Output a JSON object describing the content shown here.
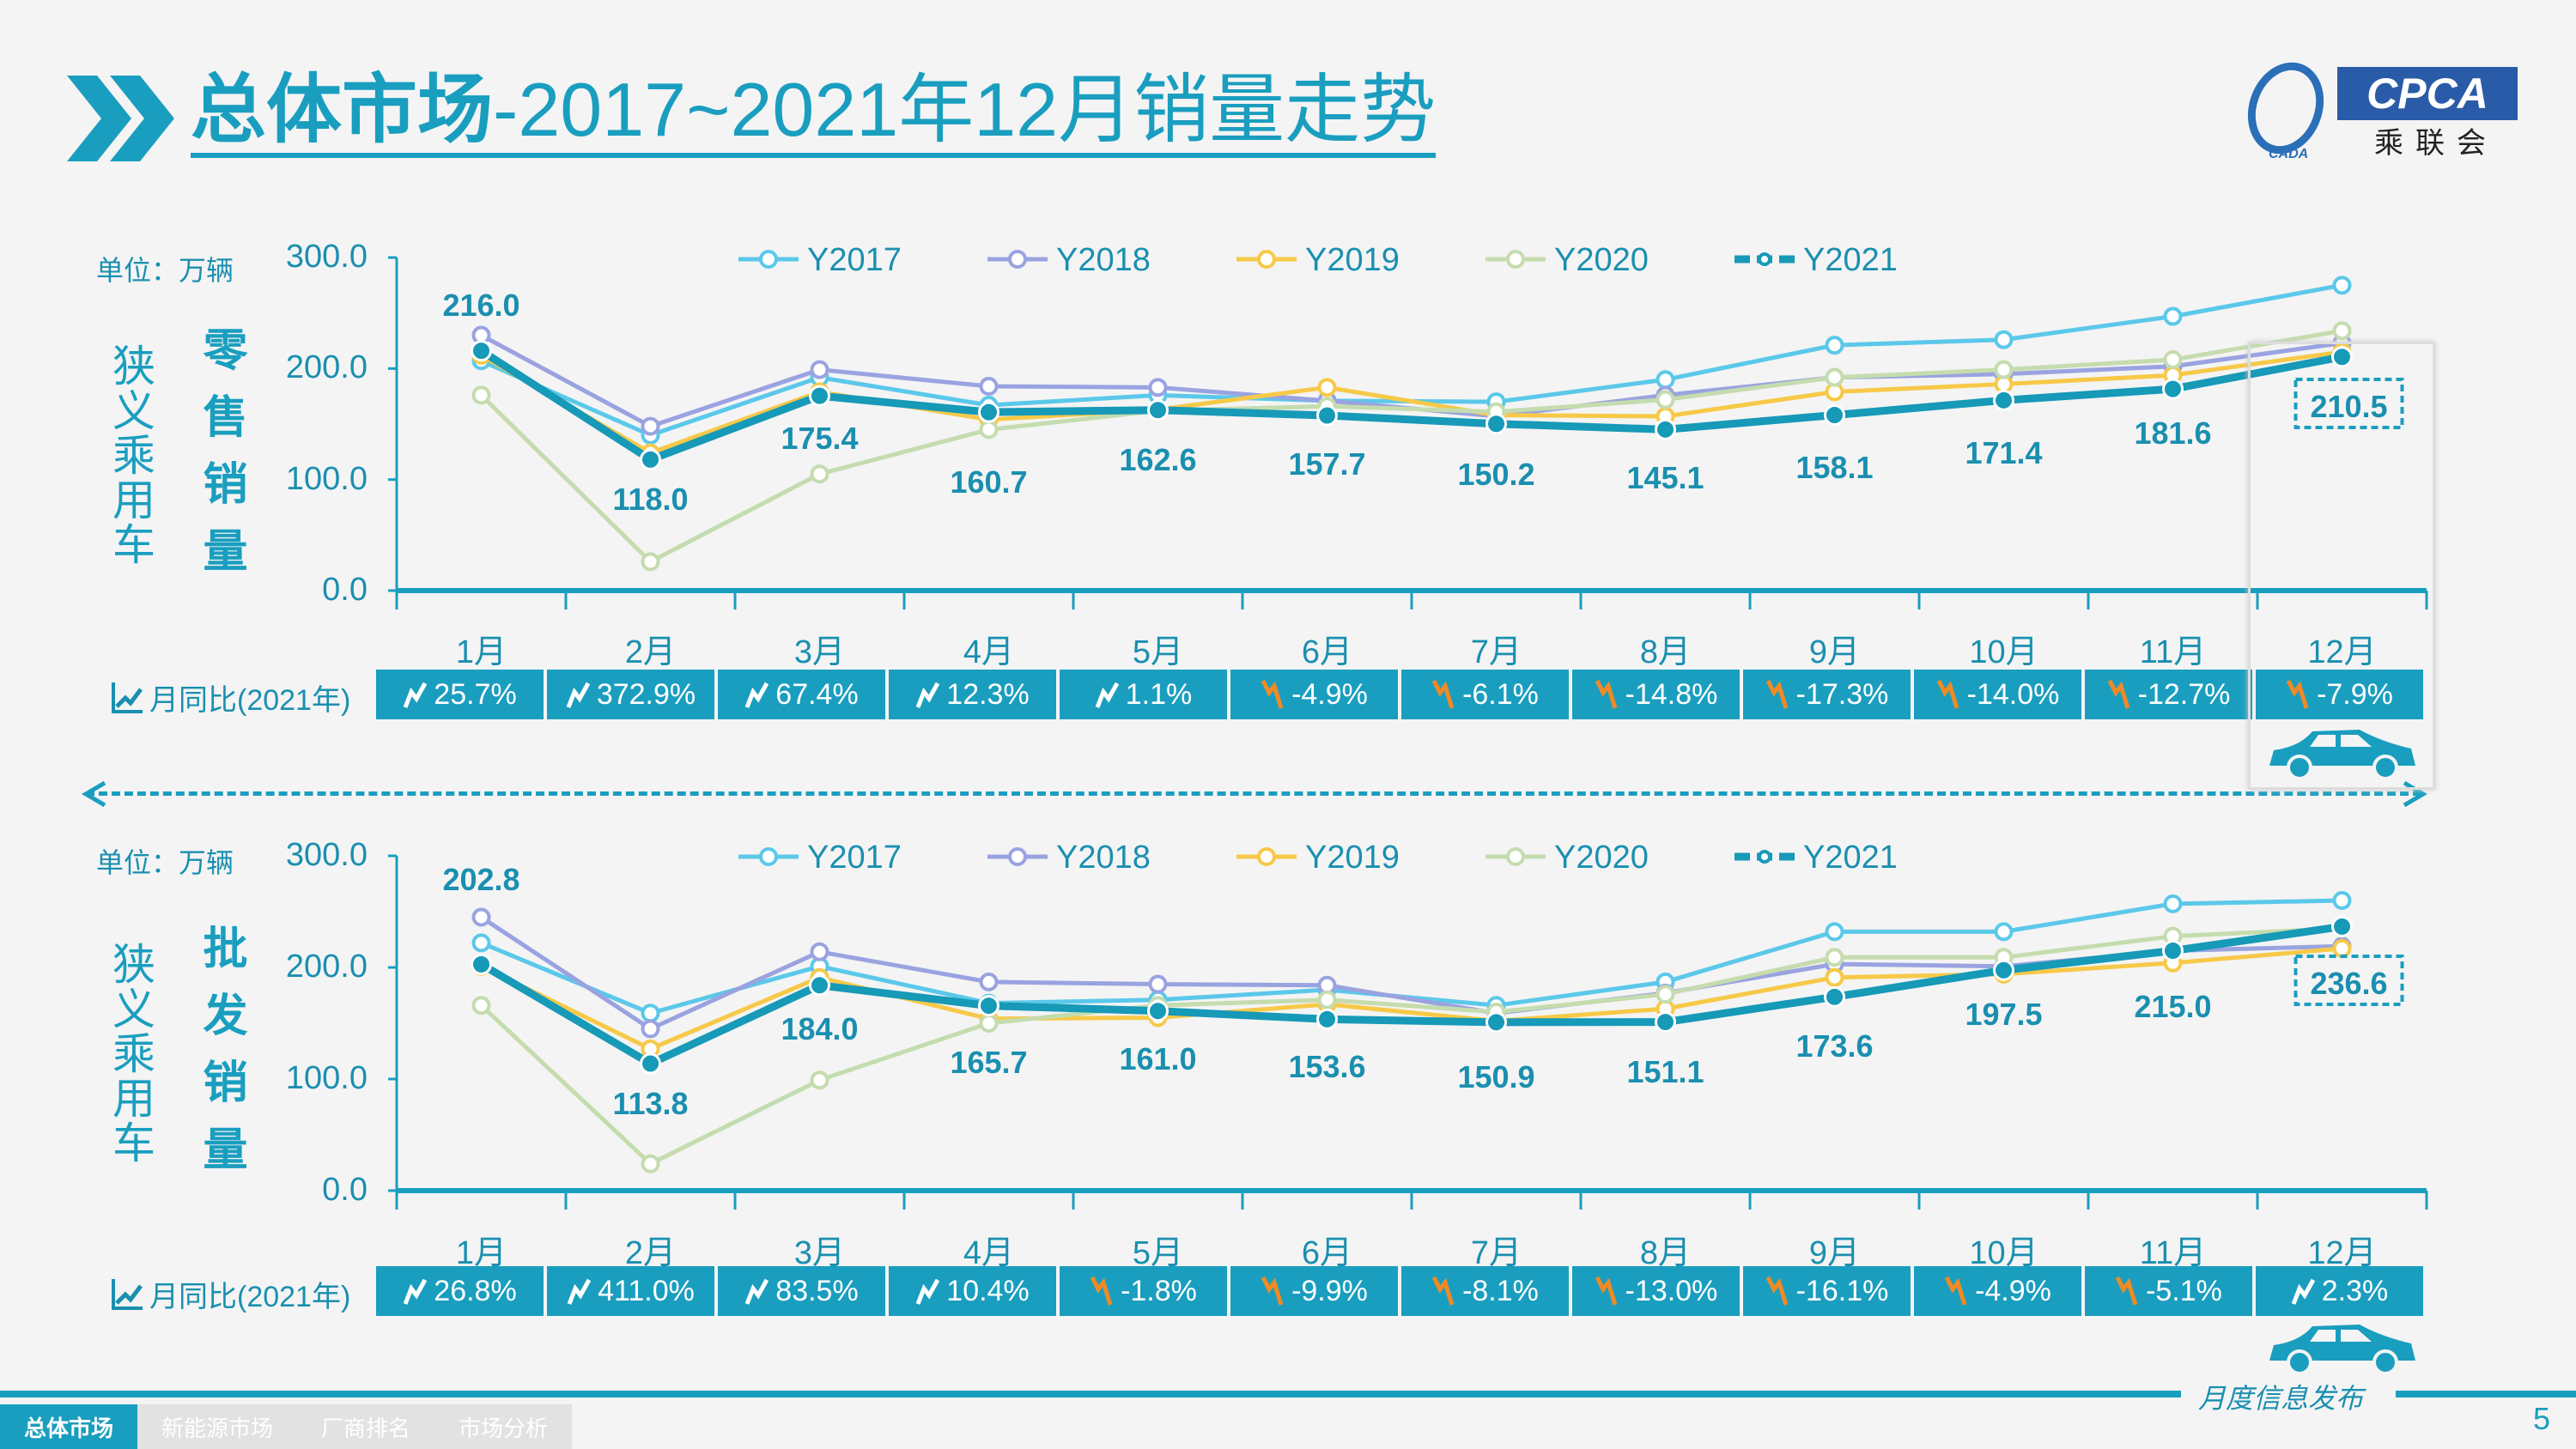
{
  "header": {
    "title_bold": "总体市场",
    "title_rest": "-2017~2021年12月销量走势"
  },
  "logo": {
    "text": "CPCA",
    "sub": "乘联会",
    "small": "CADA"
  },
  "colors": {
    "Y2017": "#5bc8ea",
    "Y2018": "#9aa3e0",
    "Y2019": "#f7c948",
    "Y2020": "#c5dcae",
    "Y2021": "#1799b8",
    "accent": "#1a9ebf",
    "down": "#f08a24"
  },
  "yoy_label": "月同比(2021年)",
  "chart_data": [
    {
      "type": "line",
      "side_label": "狭义乘用车",
      "metric_label": "零售销量",
      "unit": "单位：万辆",
      "categories": [
        "1月",
        "2月",
        "3月",
        "4月",
        "5月",
        "6月",
        "7月",
        "8月",
        "9月",
        "10月",
        "11月",
        "12月"
      ],
      "yticks": [
        "300.0",
        "200.0",
        "100.0",
        "0.0"
      ],
      "ylim": [
        0,
        300
      ],
      "legend": "top",
      "series": [
        {
          "name": "Y2017",
          "values": [
            207,
            140,
            192,
            167,
            176,
            171,
            170,
            190,
            221,
            226,
            247,
            275
          ]
        },
        {
          "name": "Y2018",
          "values": [
            230,
            148,
            199,
            184,
            183,
            171,
            157,
            176,
            192,
            195,
            202,
            223
          ]
        },
        {
          "name": "Y2019",
          "values": [
            212,
            124,
            179,
            154,
            163,
            183,
            158,
            157,
            179,
            186,
            194,
            215
          ]
        },
        {
          "name": "Y2020",
          "values": [
            176,
            26,
            105,
            145,
            162,
            166,
            161,
            172,
            192,
            199,
            208,
            234
          ]
        },
        {
          "name": "Y2021",
          "values": [
            216.0,
            118.0,
            175.4,
            160.7,
            162.6,
            157.7,
            150.2,
            145.1,
            158.1,
            171.4,
            181.6,
            210.5
          ]
        }
      ],
      "data_labels": [
        "216.0",
        "118.0",
        "175.4",
        "160.7",
        "162.6",
        "157.7",
        "150.2",
        "145.1",
        "158.1",
        "171.4",
        "181.6",
        "210.5"
      ],
      "yoy": [
        {
          "v": "25.7%",
          "dir": "up"
        },
        {
          "v": "372.9%",
          "dir": "up"
        },
        {
          "v": "67.4%",
          "dir": "up"
        },
        {
          "v": "12.3%",
          "dir": "up"
        },
        {
          "v": "1.1%",
          "dir": "up"
        },
        {
          "v": "-4.9%",
          "dir": "down"
        },
        {
          "v": "-6.1%",
          "dir": "down"
        },
        {
          "v": "-14.8%",
          "dir": "down"
        },
        {
          "v": "-17.3%",
          "dir": "down"
        },
        {
          "v": "-14.0%",
          "dir": "down"
        },
        {
          "v": "-12.7%",
          "dir": "down"
        },
        {
          "v": "-7.9%",
          "dir": "down"
        }
      ]
    },
    {
      "type": "line",
      "side_label": "狭义乘用车",
      "metric_label": "批发销量",
      "unit": "单位：万辆",
      "categories": [
        "1月",
        "2月",
        "3月",
        "4月",
        "5月",
        "6月",
        "7月",
        "8月",
        "9月",
        "10月",
        "11月",
        "12月"
      ],
      "yticks": [
        "300.0",
        "200.0",
        "100.0",
        "0.0"
      ],
      "ylim": [
        0,
        300
      ],
      "legend": "top",
      "series": [
        {
          "name": "Y2017",
          "values": [
            222,
            159,
            201,
            168,
            171,
            180,
            166,
            187,
            232,
            232,
            257,
            260
          ]
        },
        {
          "name": "Y2018",
          "values": [
            245,
            145,
            214,
            187,
            185,
            184,
            159,
            177,
            203,
            201,
            215,
            219
          ]
        },
        {
          "name": "Y2019",
          "values": [
            201,
            127,
            191,
            154,
            155,
            167,
            152,
            163,
            191,
            194,
            204,
            217
          ]
        },
        {
          "name": "Y2020",
          "values": [
            166,
            24,
            99,
            150,
            166,
            171,
            160,
            176,
            209,
            209,
            228,
            235
          ]
        },
        {
          "name": "Y2021",
          "values": [
            202.8,
            113.8,
            184.0,
            165.7,
            161.0,
            153.6,
            150.9,
            151.1,
            173.6,
            197.5,
            215.0,
            236.6
          ]
        }
      ],
      "data_labels": [
        "202.8",
        "113.8",
        "184.0",
        "165.7",
        "161.0",
        "153.6",
        "150.9",
        "151.1",
        "173.6",
        "197.5",
        "215.0",
        "236.6"
      ],
      "yoy": [
        {
          "v": "26.8%",
          "dir": "up"
        },
        {
          "v": "411.0%",
          "dir": "up"
        },
        {
          "v": "83.5%",
          "dir": "up"
        },
        {
          "v": "10.4%",
          "dir": "up"
        },
        {
          "v": "-1.8%",
          "dir": "down"
        },
        {
          "v": "-9.9%",
          "dir": "down"
        },
        {
          "v": "-8.1%",
          "dir": "down"
        },
        {
          "v": "-13.0%",
          "dir": "down"
        },
        {
          "v": "-16.1%",
          "dir": "down"
        },
        {
          "v": "-4.9%",
          "dir": "down"
        },
        {
          "v": "-5.1%",
          "dir": "down"
        },
        {
          "v": "2.3%",
          "dir": "up"
        }
      ]
    }
  ],
  "footer": {
    "release": "月度信息发布",
    "tabs": [
      "总体市场",
      "新能源市场",
      "厂商排名",
      "市场分析"
    ],
    "page": "5"
  }
}
